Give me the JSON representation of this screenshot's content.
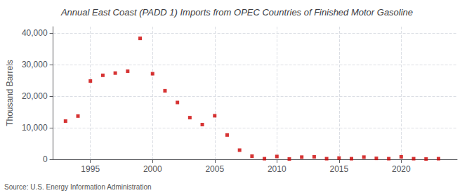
{
  "chart_data": {
    "type": "scatter",
    "title": "Annual East Coast (PADD 1) Imports from OPEC Countries of Finished Motor Gasoline",
    "ylabel": "Thousand Barrels",
    "source": "Source: U.S. Energy Information Administration",
    "x": [
      1993,
      1994,
      1995,
      1996,
      1997,
      1998,
      1999,
      2000,
      2001,
      2002,
      2003,
      2004,
      2005,
      2006,
      2007,
      2008,
      2009,
      2010,
      2011,
      2012,
      2013,
      2014,
      2015,
      2016,
      2017,
      2018,
      2019,
      2020,
      2021,
      2022,
      2023
    ],
    "values": [
      12100,
      13700,
      24800,
      26600,
      27300,
      27900,
      38300,
      27100,
      21700,
      18000,
      13200,
      11000,
      13800,
      7700,
      2900,
      1000,
      200,
      900,
      100,
      700,
      800,
      200,
      400,
      200,
      700,
      300,
      200,
      800,
      200,
      100,
      200
    ],
    "color": "#cc0000",
    "marker": "square",
    "xlim": [
      1992,
      2024.5
    ],
    "xticks": [
      1995,
      2000,
      2005,
      2010,
      2015,
      2020
    ],
    "ylim": [
      0,
      42000
    ],
    "yticks": [
      0,
      {
        "value": 10000,
        "label": "10,000"
      },
      {
        "value": 20000,
        "label": "20,000"
      },
      {
        "value": 30000,
        "label": "30,000"
      },
      {
        "value": 40000,
        "label": "40,000"
      }
    ],
    "grid": true
  }
}
